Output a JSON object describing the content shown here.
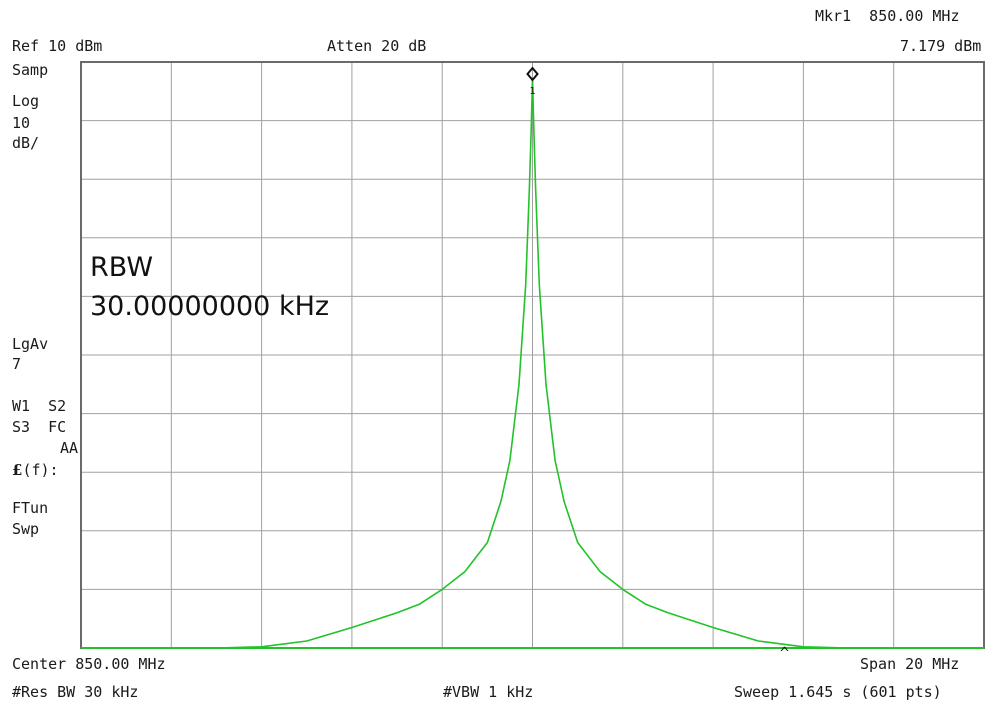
{
  "header": {
    "ref_level": "Ref 10 dBm",
    "attenuation": "Atten 20 dB",
    "marker_label": "Mkr1  850.00 MHz",
    "marker_value": "7.179 dBm"
  },
  "left_panel": {
    "detector": "Samp",
    "scale_type": "Log",
    "scale_value": "10",
    "scale_unit": "dB/",
    "avg_label": "LgAv",
    "avg_count": "7",
    "traces_line1": "W1  S2",
    "traces_line2": "S3  FC",
    "traces_line3": "AA",
    "func_label": "(f):",
    "func_mode": "FTun",
    "sweep_label": "Swp"
  },
  "overlay": {
    "param_name": "RBW",
    "param_value": "30.00000000 kHz"
  },
  "marker": {
    "number": "1"
  },
  "footer": {
    "center": "Center 850.00 MHz",
    "span": "Span 20 MHz",
    "res_bw": "#Res BW 30 kHz",
    "vbw": "#VBW 1 kHz",
    "sweep": "Sweep 1.645 s (601 pts)",
    "caret": "^"
  },
  "colors": {
    "trace": "#22c22a",
    "grid": "#a0a0a0",
    "frame": "#6a6a6a",
    "text": "#1a1a1a"
  },
  "chart_data": {
    "type": "line",
    "x_unit": "MHz",
    "y_unit": "dBm",
    "xlim": [
      840,
      860
    ],
    "ylim": [
      -90,
      10
    ],
    "grid": true,
    "peak": {
      "x": 850.0,
      "y": 7.179
    },
    "series": [
      {
        "x": [
          840.0,
          843.0,
          844.0,
          845.0,
          846.0,
          847.0,
          847.5,
          848.0,
          848.5,
          849.0,
          849.3,
          849.5,
          849.7,
          849.85,
          849.93,
          849.97,
          850.0,
          850.03,
          850.07,
          850.15,
          850.3,
          850.5,
          850.7,
          851.0,
          851.5,
          852.0,
          852.5,
          853.0,
          854.0,
          855.0,
          856.0,
          857.0,
          860.0
        ],
        "y": [
          -90.0,
          -90.0,
          -89.8,
          -88.8,
          -86.5,
          -84.0,
          -82.5,
          -80.0,
          -77.0,
          -72.0,
          -65.0,
          -58.0,
          -45.0,
          -28.0,
          -12.0,
          -2.0,
          7.2,
          -2.0,
          -12.0,
          -28.0,
          -45.0,
          -58.0,
          -65.0,
          -72.0,
          -77.0,
          -80.0,
          -82.5,
          -84.0,
          -86.5,
          -88.8,
          -89.8,
          -90.0,
          -90.0
        ]
      }
    ]
  }
}
